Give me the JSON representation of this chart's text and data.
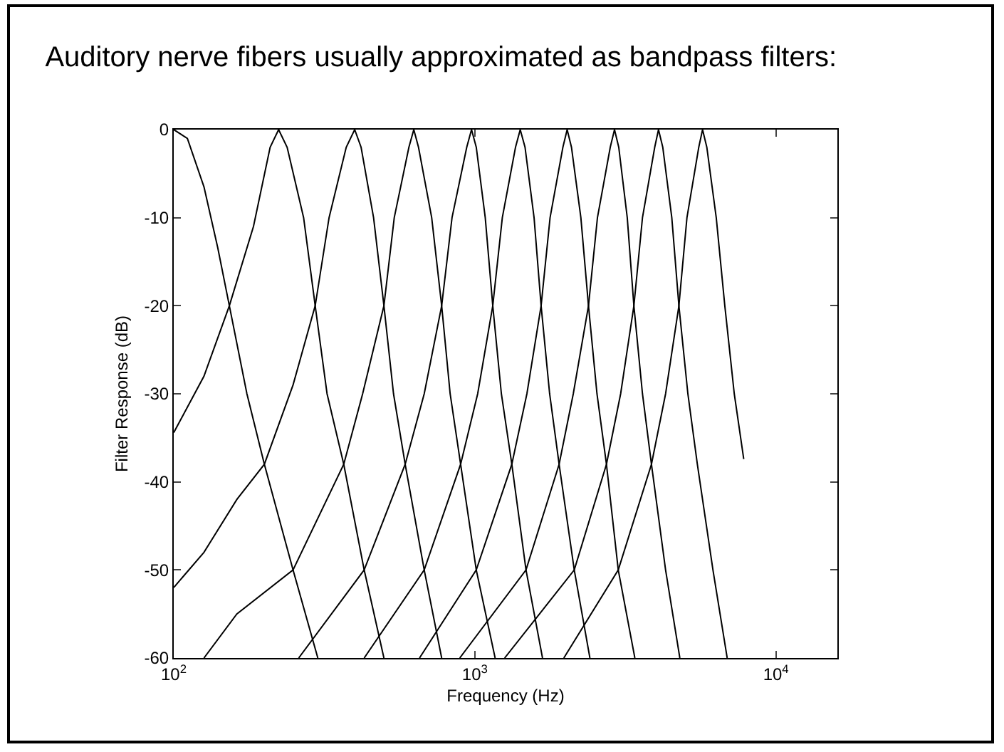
{
  "chart_data": {
    "type": "line",
    "title": "Auditory nerve fibers usually approximated as bandpass filters:",
    "xlabel": "Frequency (Hz)",
    "ylabel": "Filter Response (dB)",
    "log": "x",
    "xlim": [
      100,
      16000
    ],
    "xticks": [
      {
        "value": 100,
        "label": "10$^{2}$"
      },
      {
        "value": 1000,
        "label": "10$^{3}$"
      },
      {
        "value": 10000,
        "label": "10$^{4}$"
      }
    ],
    "ylim": [
      -60,
      0
    ],
    "yticks": [
      -60,
      -50,
      -40,
      -30,
      -20,
      -10,
      0
    ],
    "marker": "none",
    "line_style": "solid",
    "series": [
      {
        "color": "#000000",
        "x": [
          100,
          111,
          126,
          140,
          153,
          175,
          200,
          249,
          301
        ],
        "values": [
          0,
          -1,
          -6.5,
          -13.4,
          -20,
          -30,
          -38,
          -50,
          -60
        ]
      },
      {
        "color": "#000000",
        "x": [
          100,
          126,
          153,
          184,
          209,
          223,
          238,
          270,
          295,
          323,
          367,
          429,
          499
        ],
        "values": [
          -34.4,
          -28,
          -20,
          -11,
          -2,
          0,
          -2,
          -10,
          -20,
          -30,
          -38,
          -50,
          -60
        ]
      },
      {
        "color": "#000000",
        "x": [
          100,
          126,
          162,
          200,
          249,
          295,
          328,
          374,
          399,
          419,
          461,
          499,
          537,
          587,
          679,
          776
        ],
        "values": [
          -52,
          -48,
          -42,
          -38,
          -29,
          -20,
          -10,
          -2,
          0,
          -2,
          -10,
          -20,
          -30,
          -38,
          -50,
          -60
        ]
      },
      {
        "color": "#000000",
        "x": [
          126,
          162,
          249,
          367,
          424,
          499,
          540,
          604,
          627,
          650,
          719,
          776,
          828,
          897,
          1011,
          1168
        ],
        "values": [
          -60,
          -55,
          -50,
          -38,
          -30,
          -20,
          -10,
          -2,
          0,
          -2,
          -10,
          -20,
          -30,
          -38,
          -50,
          -60
        ]
      },
      {
        "color": "#000000",
        "x": [
          260,
          429,
          587,
          679,
          776,
          840,
          940,
          975,
          1011,
          1083,
          1147,
          1225,
          1327,
          1479,
          1678
        ],
        "values": [
          -60,
          -50,
          -38,
          -30,
          -20,
          -10,
          -2,
          0,
          -2,
          -10,
          -20,
          -30,
          -38,
          -50,
          -60
        ]
      },
      {
        "color": "#000000",
        "x": [
          429,
          679,
          897,
          1022,
          1147,
          1234,
          1365,
          1415,
          1468,
          1573,
          1660,
          1772,
          1905,
          2139,
          2411
        ],
        "values": [
          -60,
          -50,
          -38,
          -30,
          -20,
          -10,
          -2,
          0,
          -2,
          -10,
          -20,
          -30,
          -38,
          -50,
          -60
        ]
      },
      {
        "color": "#000000",
        "x": [
          655,
          1011,
          1327,
          1489,
          1660,
          1778,
          1961,
          2026,
          2094,
          2250,
          2385,
          2545,
          2736,
          2995,
          3400
        ],
        "values": [
          -60,
          -50,
          -38,
          -30,
          -20,
          -10,
          -2,
          0,
          -2,
          -10,
          -20,
          -30,
          -38,
          -50,
          -60
        ]
      },
      {
        "color": "#000000",
        "x": [
          891,
          1479,
          1905,
          2123,
          2385,
          2554,
          2817,
          2910,
          3006,
          3208,
          3375,
          3604,
          3860,
          4301,
          4796
        ],
        "values": [
          -60,
          -50,
          -38,
          -30,
          -20,
          -10,
          -2,
          0,
          -2,
          -10,
          -20,
          -30,
          -38,
          -50,
          -60
        ]
      },
      {
        "color": "#000000",
        "x": [
          1256,
          2139,
          2736,
          3050,
          3375,
          3604,
          3958,
          4074,
          4209,
          4510,
          4762,
          5100,
          5483,
          6178,
          6889
        ],
        "values": [
          -60,
          -50,
          -38,
          -30,
          -20,
          -10,
          -2,
          0,
          -2,
          -10,
          -20,
          -30,
          -38,
          -50,
          -60
        ]
      },
      {
        "color": "#000000",
        "x": [
          1975,
          2995,
          3860,
          4301,
          4762,
          5064,
          5543,
          5706,
          5895,
          6336,
          6765,
          7272,
          7818
        ],
        "values": [
          -60,
          -50,
          -38,
          -30,
          -20,
          -10,
          -2,
          0,
          -2,
          -10,
          -20,
          -30,
          -37.4
        ]
      }
    ]
  }
}
